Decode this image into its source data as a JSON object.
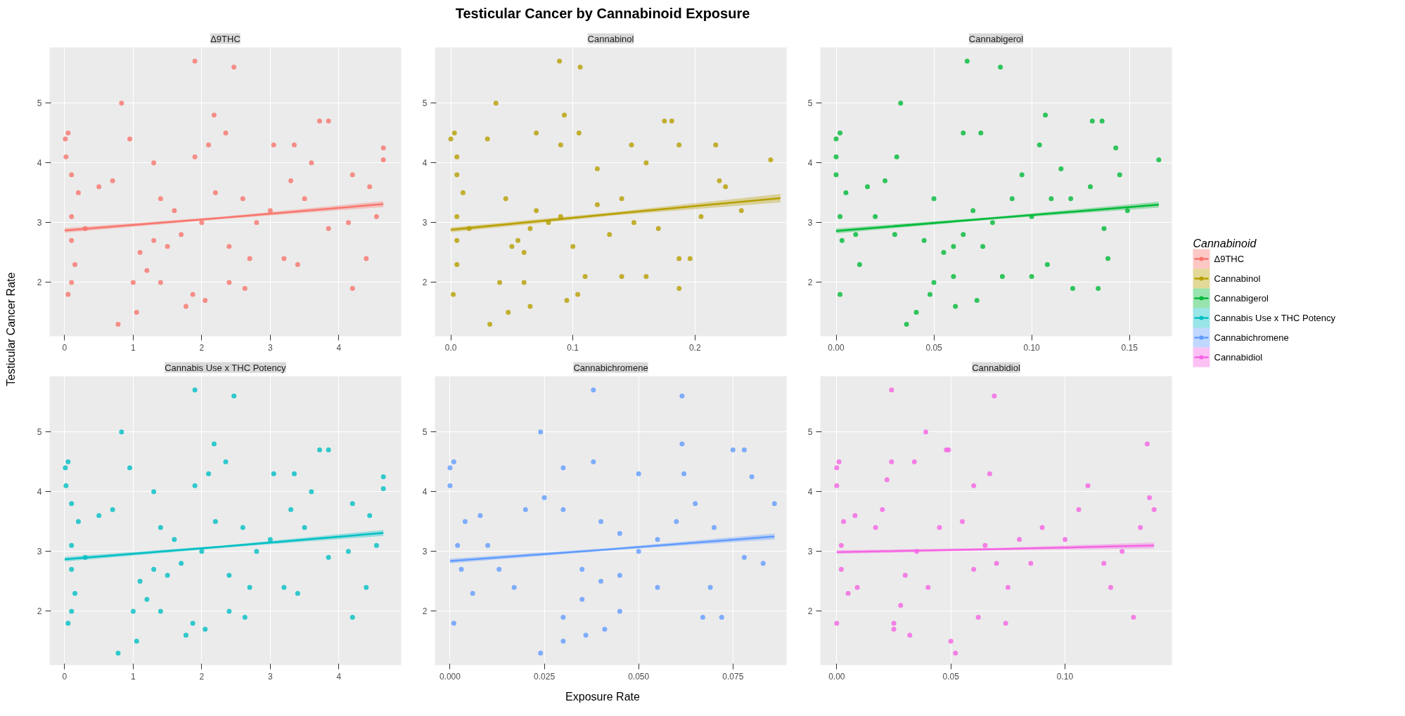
{
  "chart_data": [
    {
      "type": "scatter",
      "subtitle": "Δ9THC",
      "ylabel": "Testicular Cancer Rate",
      "legend": "right",
      "legend_title": "Cannabinoid",
      "grid": true,
      "xlim": [
        -0.22,
        4.91
      ],
      "xticks": [
        0,
        1,
        2,
        3,
        4
      ],
      "ylim": [
        1.1,
        5.93
      ],
      "yticks": [
        2,
        3,
        4,
        5
      ],
      "series": [
        {
          "name": "Δ9THC",
          "marker": "circle",
          "color": "#F8766D",
          "x": [
            1.9,
            2.47,
            0.83,
            2.18,
            3.72,
            3.85,
            0.01,
            0.05,
            4.65,
            4.65,
            4.2,
            4.45,
            4.55,
            4.2,
            4.4,
            4.14,
            3.85,
            0.78,
            1.05,
            1.77,
            2.05,
            0.05,
            2.63,
            1.87,
            1.1,
            1.3,
            1.5,
            1.4,
            1.6,
            2.0,
            2.2,
            1.2,
            1.7,
            2.4,
            2.6,
            2.8,
            3.0,
            3.3,
            3.5,
            0.1,
            0.1,
            0.2,
            0.3,
            0.15,
            0.5,
            1.0,
            1.4,
            2.4,
            1.9,
            2.35,
            0.95,
            3.05,
            3.35,
            2.7,
            3.2,
            3.4,
            0.02,
            0.1,
            0.1,
            2.1,
            1.3,
            0.7,
            3.6
          ],
          "values": [
            5.7,
            5.6,
            5.0,
            4.8,
            4.7,
            4.7,
            4.4,
            4.5,
            4.25,
            4.05,
            3.8,
            3.6,
            3.1,
            1.9,
            2.4,
            3.0,
            2.9,
            1.3,
            1.5,
            1.6,
            1.7,
            1.8,
            1.9,
            1.8,
            2.5,
            2.7,
            2.6,
            3.4,
            3.2,
            3.0,
            3.5,
            2.2,
            2.8,
            2.6,
            3.4,
            3.0,
            3.2,
            3.7,
            3.4,
            3.1,
            2.7,
            3.5,
            2.9,
            2.3,
            3.6,
            2.0,
            2.0,
            2.0,
            4.1,
            4.5,
            4.4,
            4.3,
            4.3,
            2.4,
            2.4,
            2.3,
            4.1,
            3.8,
            2.0,
            4.3,
            4.0,
            3.7,
            4.0
          ]
        },
        {
          "type": "line",
          "color": "#F8766D",
          "x": [
            0,
            2.3,
            4.65
          ],
          "values": [
            2.87,
            3.08,
            3.31
          ],
          "lower": [
            2.83,
            3.06,
            3.26
          ],
          "upper": [
            2.91,
            3.1,
            3.36
          ]
        }
      ]
    },
    {
      "type": "scatter",
      "subtitle": "Cannabinol",
      "annotations": [
        "Testicular Cancer by Cannabinoid Exposure"
      ],
      "grid": true,
      "xlim": [
        -0.013,
        0.275
      ],
      "xticks": [
        {
          "value": 0,
          "label": "0.0"
        },
        0.1,
        0.2
      ],
      "ylim": [
        1.1,
        5.93
      ],
      "yticks": [
        2,
        3,
        4,
        5
      ],
      "series": [
        {
          "name": "Cannabinol",
          "marker": "circle",
          "color": "#B79F00",
          "x": [
            0.089,
            0.106,
            0.037,
            0.093,
            0.175,
            0.181,
            0.0,
            0.003,
            0.262,
            0.217,
            0.187,
            0.22,
            0.225,
            0.238,
            0.205,
            0.187,
            0.196,
            0.187,
            0.032,
            0.047,
            0.065,
            0.095,
            0.104,
            0.002,
            0.05,
            0.055,
            0.06,
            0.045,
            0.07,
            0.08,
            0.09,
            0.1,
            0.065,
            0.12,
            0.13,
            0.14,
            0.15,
            0.16,
            0.17,
            0.005,
            0.005,
            0.01,
            0.015,
            0.005,
            0.04,
            0.06,
            0.11,
            0.14,
            0.07,
            0.105,
            0.09,
            0.03,
            0.148,
            0.16,
            0.12,
            0.005,
            0.005
          ],
          "values": [
            5.7,
            5.6,
            5.0,
            4.8,
            4.7,
            4.7,
            4.4,
            4.5,
            4.05,
            4.3,
            4.3,
            3.7,
            3.6,
            3.2,
            3.1,
            2.4,
            2.4,
            1.9,
            1.3,
            1.5,
            1.6,
            1.7,
            1.8,
            1.8,
            2.6,
            2.7,
            2.5,
            3.4,
            3.2,
            3.0,
            3.1,
            2.6,
            2.9,
            3.3,
            2.8,
            3.4,
            3.0,
            4.0,
            2.9,
            3.1,
            2.7,
            3.5,
            2.9,
            2.3,
            2.0,
            2.0,
            2.1,
            2.1,
            4.5,
            4.5,
            4.3,
            4.4,
            4.3,
            2.1,
            3.9,
            4.1,
            3.8
          ]
        },
        {
          "type": "line",
          "color": "#B79F00",
          "x": [
            0,
            0.135,
            0.27
          ],
          "values": [
            2.88,
            3.15,
            3.41
          ],
          "lower": [
            2.84,
            3.12,
            3.34
          ],
          "upper": [
            2.92,
            3.18,
            3.48
          ]
        }
      ]
    },
    {
      "type": "scatter",
      "subtitle": "Cannabigerol",
      "grid": true,
      "xlim": [
        -0.0081,
        0.1717
      ],
      "xticks": [
        {
          "value": 0,
          "label": "0.00"
        },
        {
          "value": 0.05,
          "label": "0.05"
        },
        {
          "value": 0.1,
          "label": "0.10"
        },
        {
          "value": 0.15,
          "label": "0.15"
        }
      ],
      "ylim": [
        1.1,
        5.93
      ],
      "yticks": [
        2,
        3,
        4,
        5
      ],
      "series": [
        {
          "name": "Cannabigerol",
          "marker": "circle",
          "color": "#00BA38",
          "x": [
            0.067,
            0.084,
            0.033,
            0.107,
            0.131,
            0.136,
            0.0,
            0.002,
            0.165,
            0.143,
            0.145,
            0.149,
            0.137,
            0.139,
            0.121,
            0.134,
            0.036,
            0.041,
            0.061,
            0.072,
            0.002,
            0.048,
            0.06,
            0.065,
            0.055,
            0.07,
            0.08,
            0.09,
            0.075,
            0.06,
            0.085,
            0.1,
            0.095,
            0.11,
            0.115,
            0.12,
            0.13,
            0.002,
            0.003,
            0.005,
            0.01,
            0.012,
            0.016,
            0.02,
            0.045,
            0.05,
            0.05,
            0.065,
            0.074,
            0.104,
            0.108,
            0.1,
            0.031,
            0.0,
            0.0,
            0.03,
            0.025
          ],
          "values": [
            5.7,
            5.6,
            5.0,
            4.8,
            4.7,
            4.7,
            4.4,
            4.5,
            4.05,
            4.25,
            3.8,
            3.2,
            2.9,
            2.4,
            1.9,
            1.9,
            1.3,
            1.5,
            1.6,
            1.7,
            1.8,
            1.8,
            2.6,
            2.8,
            2.5,
            3.2,
            3.0,
            3.4,
            2.6,
            2.1,
            2.1,
            3.1,
            3.8,
            3.4,
            3.9,
            3.4,
            3.6,
            3.1,
            2.7,
            3.5,
            2.8,
            2.3,
            3.6,
            3.1,
            2.7,
            3.4,
            2.0,
            4.5,
            4.5,
            4.3,
            2.3,
            2.1,
            4.1,
            4.1,
            3.8,
            2.8,
            3.7
          ]
        },
        {
          "type": "line",
          "color": "#00BA38",
          "x": [
            0,
            0.0825,
            0.165
          ],
          "values": [
            2.86,
            3.08,
            3.3
          ],
          "lower": [
            2.82,
            3.06,
            3.25
          ],
          "upper": [
            2.9,
            3.1,
            3.35
          ]
        }
      ]
    },
    {
      "type": "scatter",
      "subtitle": "Cannabis Use x THC Potency",
      "grid": true,
      "xlim": [
        -0.22,
        4.91
      ],
      "xticks": [
        0,
        1,
        2,
        3,
        4
      ],
      "ylim": [
        1.1,
        5.93
      ],
      "yticks": [
        2,
        3,
        4,
        5
      ],
      "series": [
        {
          "name": "Cannabis Use x THC Potency",
          "marker": "circle",
          "color": "#00BFC4",
          "x": [
            1.9,
            2.47,
            0.83,
            2.18,
            3.72,
            3.85,
            0.01,
            0.05,
            4.65,
            4.65,
            4.2,
            4.45,
            4.55,
            4.2,
            4.4,
            4.14,
            3.85,
            0.78,
            1.05,
            1.77,
            2.05,
            0.05,
            2.63,
            1.87,
            1.1,
            1.3,
            1.5,
            1.4,
            1.6,
            2.0,
            2.2,
            1.2,
            1.7,
            2.4,
            2.6,
            2.8,
            3.0,
            3.3,
            3.5,
            0.1,
            0.1,
            0.2,
            0.3,
            0.15,
            0.5,
            1.0,
            1.4,
            2.4,
            1.9,
            2.35,
            0.95,
            3.05,
            3.35,
            2.7,
            3.2,
            3.4,
            0.02,
            0.1,
            0.1,
            2.1,
            1.3,
            0.7,
            3.6
          ],
          "values": [
            5.7,
            5.6,
            5.0,
            4.8,
            4.7,
            4.7,
            4.4,
            4.5,
            4.25,
            4.05,
            3.8,
            3.6,
            3.1,
            1.9,
            2.4,
            3.0,
            2.9,
            1.3,
            1.5,
            1.6,
            1.7,
            1.8,
            1.9,
            1.8,
            2.5,
            2.7,
            2.6,
            3.4,
            3.2,
            3.0,
            3.5,
            2.2,
            2.8,
            2.6,
            3.4,
            3.0,
            3.2,
            3.7,
            3.4,
            3.1,
            2.7,
            3.5,
            2.9,
            2.3,
            3.6,
            2.0,
            2.0,
            2.0,
            4.1,
            4.5,
            4.4,
            4.3,
            4.3,
            2.4,
            2.4,
            2.3,
            4.1,
            3.8,
            2.0,
            4.3,
            4.0,
            3.7,
            4.0
          ]
        },
        {
          "type": "line",
          "color": "#00BFC4",
          "x": [
            0,
            2.3,
            4.65
          ],
          "values": [
            2.87,
            3.08,
            3.31
          ],
          "lower": [
            2.83,
            3.06,
            3.26
          ],
          "upper": [
            2.91,
            3.1,
            3.36
          ]
        }
      ]
    },
    {
      "type": "scatter",
      "subtitle": "Cannabichromene",
      "xlabel": "Exposure Rate",
      "grid": true,
      "xlim": [
        -0.004,
        0.0892
      ],
      "xticks": [
        {
          "value": 0,
          "label": "0.000"
        },
        {
          "value": 0.025,
          "label": "0.025"
        },
        {
          "value": 0.05,
          "label": "0.050"
        },
        {
          "value": 0.075,
          "label": "0.075"
        }
      ],
      "ylim": [
        1.1,
        5.93
      ],
      "yticks": [
        2,
        3,
        4,
        5
      ],
      "series": [
        {
          "name": "Cannabichromene",
          "marker": "circle",
          "color": "#619CFF",
          "x": [
            0.038,
            0.0615,
            0.024,
            0.0615,
            0.075,
            0.078,
            0.0,
            0.001,
            0.086,
            0.08,
            0.083,
            0.078,
            0.072,
            0.067,
            0.069,
            0.024,
            0.03,
            0.036,
            0.041,
            0.001,
            0.045,
            0.04,
            0.035,
            0.05,
            0.045,
            0.055,
            0.04,
            0.06,
            0.065,
            0.07,
            0.035,
            0.045,
            0.055,
            0.03,
            0.025,
            0.002,
            0.003,
            0.004,
            0.006,
            0.008,
            0.01,
            0.013,
            0.017,
            0.02,
            0.05,
            0.038,
            0.03,
            0.062,
            0.0,
            0.03
          ],
          "values": [
            5.7,
            5.6,
            5.0,
            4.8,
            4.7,
            4.7,
            4.4,
            4.5,
            3.8,
            4.25,
            2.8,
            2.9,
            1.9,
            1.9,
            2.4,
            1.3,
            1.5,
            1.6,
            1.7,
            1.8,
            2.6,
            2.5,
            2.7,
            3.0,
            3.3,
            3.2,
            3.5,
            3.5,
            3.8,
            3.4,
            2.2,
            2.0,
            2.4,
            3.7,
            3.9,
            3.1,
            2.7,
            3.5,
            2.3,
            3.6,
            3.1,
            2.7,
            2.4,
            3.7,
            4.3,
            4.5,
            4.4,
            4.3,
            4.1,
            1.9
          ]
        },
        {
          "type": "line",
          "color": "#619CFF",
          "x": [
            0,
            0.043,
            0.086
          ],
          "values": [
            2.84,
            3.04,
            3.25
          ],
          "lower": [
            2.8,
            3.02,
            3.2
          ],
          "upper": [
            2.88,
            3.06,
            3.3
          ]
        }
      ]
    },
    {
      "type": "scatter",
      "subtitle": "Cannabidiol",
      "grid": true,
      "xlim": [
        -0.0072,
        0.1468
      ],
      "xticks": [
        {
          "value": 0,
          "label": "0.00"
        },
        {
          "value": 0.05,
          "label": "0.05"
        },
        {
          "value": 0.1,
          "label": "0.10"
        }
      ],
      "ylim": [
        1.1,
        5.93
      ],
      "yticks": [
        2,
        3,
        4,
        5
      ],
      "series": [
        {
          "name": "Cannabidiol",
          "marker": "circle",
          "color": "#F564E3",
          "x": [
            0.024,
            0.069,
            0.039,
            0.136,
            0.048,
            0.049,
            0.0,
            0.001,
            0.139,
            0.137,
            0.133,
            0.13,
            0.125,
            0.12,
            0.117,
            0.024,
            0.034,
            0.052,
            0.05,
            0.032,
            0.025,
            0.025,
            0.0,
            0.074,
            0.03,
            0.04,
            0.035,
            0.045,
            0.055,
            0.06,
            0.065,
            0.07,
            0.075,
            0.08,
            0.085,
            0.09,
            0.1,
            0.11,
            0.002,
            0.002,
            0.003,
            0.005,
            0.008,
            0.009,
            0.017,
            0.022,
            0.02,
            0.028,
            0.06,
            0.067,
            0.106,
            0.0,
            0.062
          ],
          "values": [
            5.7,
            5.6,
            5.0,
            4.8,
            4.7,
            4.7,
            4.4,
            4.5,
            3.7,
            3.9,
            3.4,
            1.9,
            3.0,
            2.4,
            2.8,
            4.5,
            4.5,
            1.3,
            1.5,
            1.6,
            1.7,
            1.8,
            1.8,
            1.8,
            2.6,
            2.4,
            3.0,
            3.4,
            3.5,
            2.7,
            3.1,
            2.8,
            2.4,
            3.2,
            2.8,
            3.4,
            3.2,
            4.1,
            3.1,
            2.7,
            3.5,
            2.3,
            3.6,
            2.4,
            3.4,
            4.2,
            3.7,
            2.1,
            4.1,
            4.3,
            3.7,
            4.1,
            1.9
          ]
        },
        {
          "type": "line",
          "color": "#F564E3",
          "x": [
            0,
            0.07,
            0.139
          ],
          "values": [
            2.99,
            3.04,
            3.1
          ],
          "lower": [
            2.96,
            3.02,
            3.05
          ],
          "upper": [
            3.02,
            3.06,
            3.15
          ]
        }
      ]
    }
  ]
}
